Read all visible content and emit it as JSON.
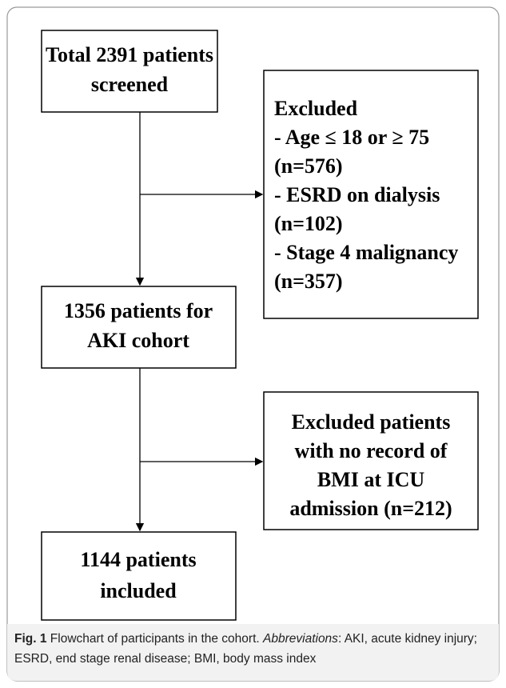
{
  "nodes": [
    {
      "lines": [
        "Total 2391 patients",
        "screened"
      ]
    },
    {
      "lines": [
        "Excluded",
        "- Age ≤ 18 or ≥ 75",
        "(n=576)",
        "- ESRD on dialysis",
        "(n=102)",
        "- Stage 4 malignancy",
        "(n=357)"
      ]
    },
    {
      "lines": [
        "1356 patients for",
        "AKI cohort"
      ]
    },
    {
      "lines": [
        "Excluded patients",
        "with no record of",
        "BMI at ICU",
        "admission (n=212)"
      ]
    },
    {
      "lines": [
        "1144 patients",
        "included"
      ]
    }
  ],
  "caption": {
    "label": "Fig. 1",
    "text": " Flowchart of participants in the cohort. ",
    "emphasis": "Abbreviations",
    "rest": ": AKI, acute kidney injury; ESRD, end stage renal disease; BMI, body mass index"
  }
}
